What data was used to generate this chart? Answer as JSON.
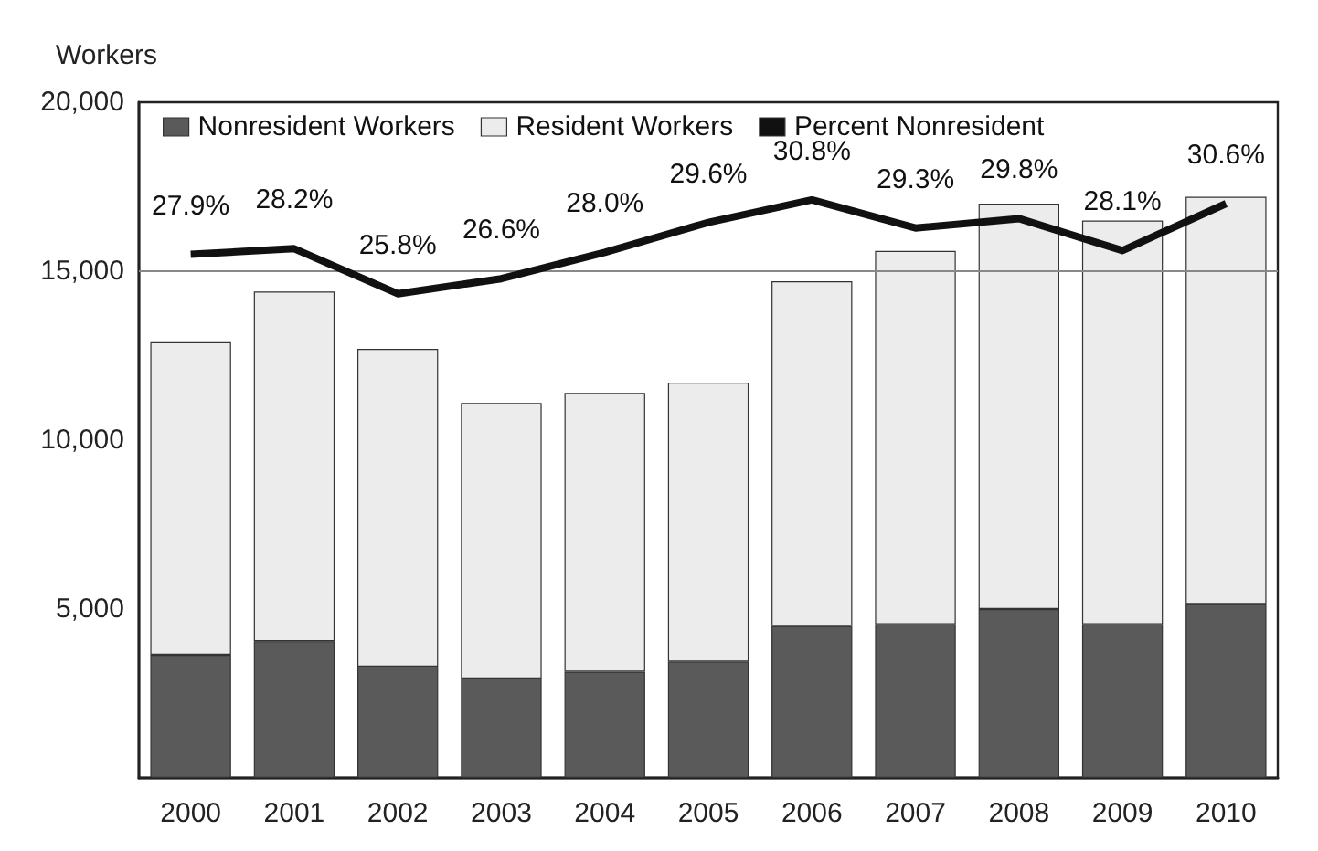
{
  "chart_data": {
    "type": "bar",
    "ylabel": "Workers",
    "categories": [
      "2000",
      "2001",
      "2002",
      "2003",
      "2004",
      "2005",
      "2006",
      "2007",
      "2008",
      "2009",
      "2010"
    ],
    "stacked": true,
    "series": [
      {
        "name": "Nonresident Workers",
        "color": "#5a5a5a",
        "values": [
          3650,
          4050,
          3300,
          2950,
          3150,
          3450,
          4500,
          4550,
          5000,
          4550,
          5150
        ]
      },
      {
        "name": "Resident Workers",
        "color": "#ececec",
        "values": [
          9250,
          10350,
          9400,
          8150,
          8250,
          8250,
          10200,
          11050,
          12000,
          11950,
          12050
        ]
      },
      {
        "name": "Percent Nonresident",
        "type": "line",
        "axis": "y2",
        "color": "#111111",
        "values": [
          27.9,
          28.2,
          25.8,
          26.6,
          28.0,
          29.6,
          30.8,
          29.3,
          29.8,
          28.1,
          30.6
        ],
        "value_labels": [
          "27.9%",
          "28.2%",
          "25.8%",
          "26.6%",
          "28.0%",
          "29.6%",
          "30.8%",
          "29.3%",
          "29.8%",
          "28.1%",
          "30.6%"
        ]
      }
    ],
    "ylim": [
      0,
      20000
    ],
    "yticks": [
      {
        "value": 0,
        "label": null
      },
      {
        "value": 5000,
        "label": "5,000"
      },
      {
        "value": 10000,
        "label": "10,000"
      },
      {
        "value": 15000,
        "label": "15,000"
      },
      {
        "value": 20000,
        "label": "20,000"
      }
    ],
    "y2lim": [
      0,
      36
    ],
    "ref_lines": [
      {
        "axis": "y",
        "value": 15000,
        "color": "#888888"
      }
    ],
    "legend": "top left",
    "marker": "none",
    "tick_labels": "xy"
  }
}
